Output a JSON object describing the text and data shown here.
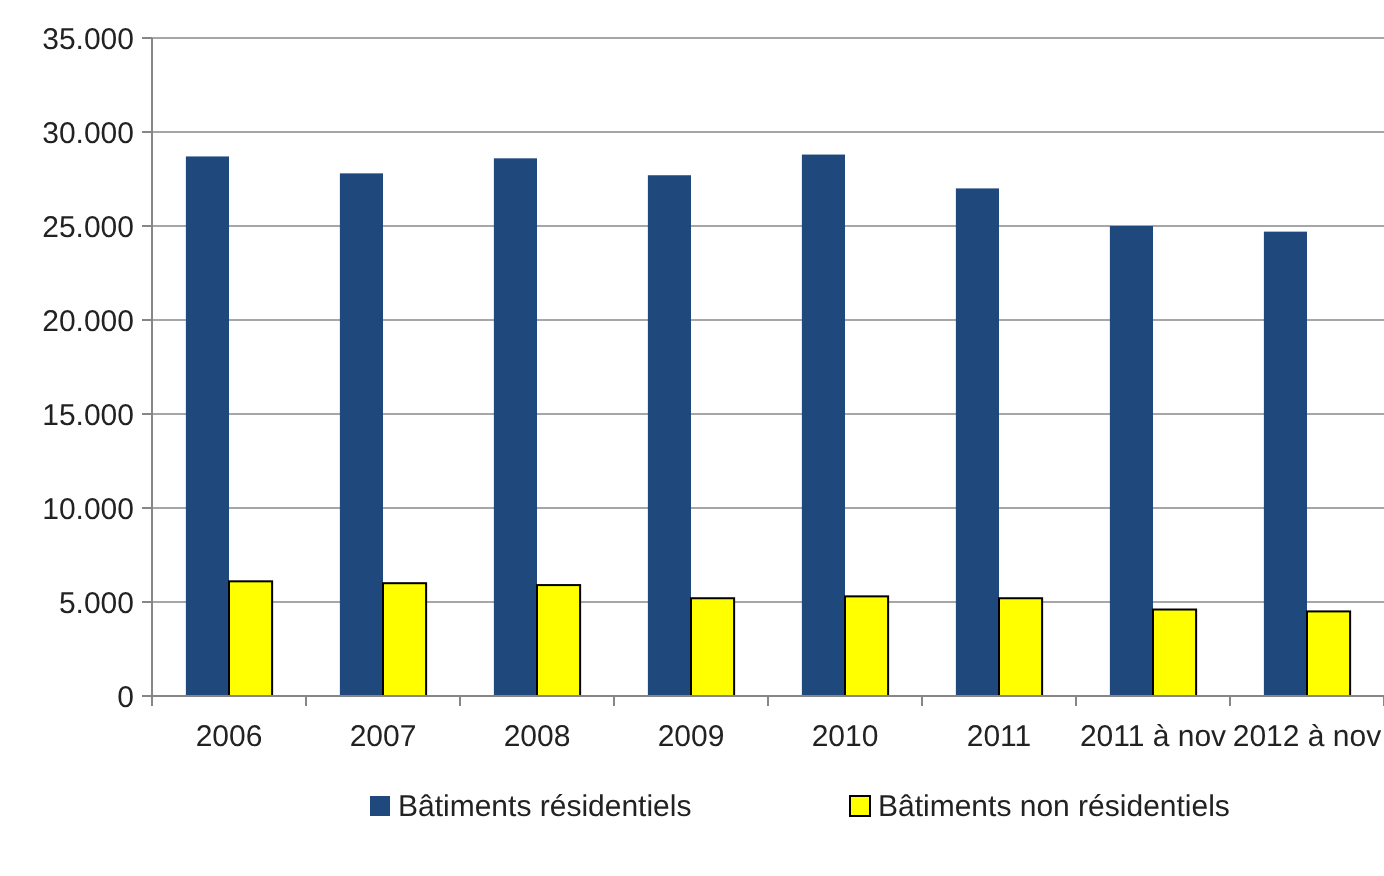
{
  "chart_data": {
    "type": "bar",
    "categories": [
      "2006",
      "2007",
      "2008",
      "2009",
      "2010",
      "2011",
      "2011 à nov",
      "2012 à nov"
    ],
    "series": [
      {
        "name": "Bâtiments résidentiels",
        "color": "#1f497d",
        "values": [
          28700,
          27800,
          28600,
          27700,
          28800,
          27000,
          25000,
          24700
        ]
      },
      {
        "name": "Bâtiments non résidentiels",
        "color": "#ffff00",
        "values": [
          6100,
          6000,
          5900,
          5200,
          5300,
          5200,
          4600,
          4500
        ]
      }
    ],
    "ylim": [
      0,
      35000
    ],
    "yticks": [
      {
        "value": 0,
        "label": "0"
      },
      {
        "value": 5000,
        "label": "5.000"
      },
      {
        "value": 10000,
        "label": "10.000"
      },
      {
        "value": 15000,
        "label": "15.000"
      },
      {
        "value": 20000,
        "label": "20.000"
      },
      {
        "value": 25000,
        "label": "25.000"
      },
      {
        "value": 30000,
        "label": "30.000"
      },
      {
        "value": 35000,
        "label": "35.000"
      }
    ],
    "grid": "y",
    "legend": "bottom"
  }
}
